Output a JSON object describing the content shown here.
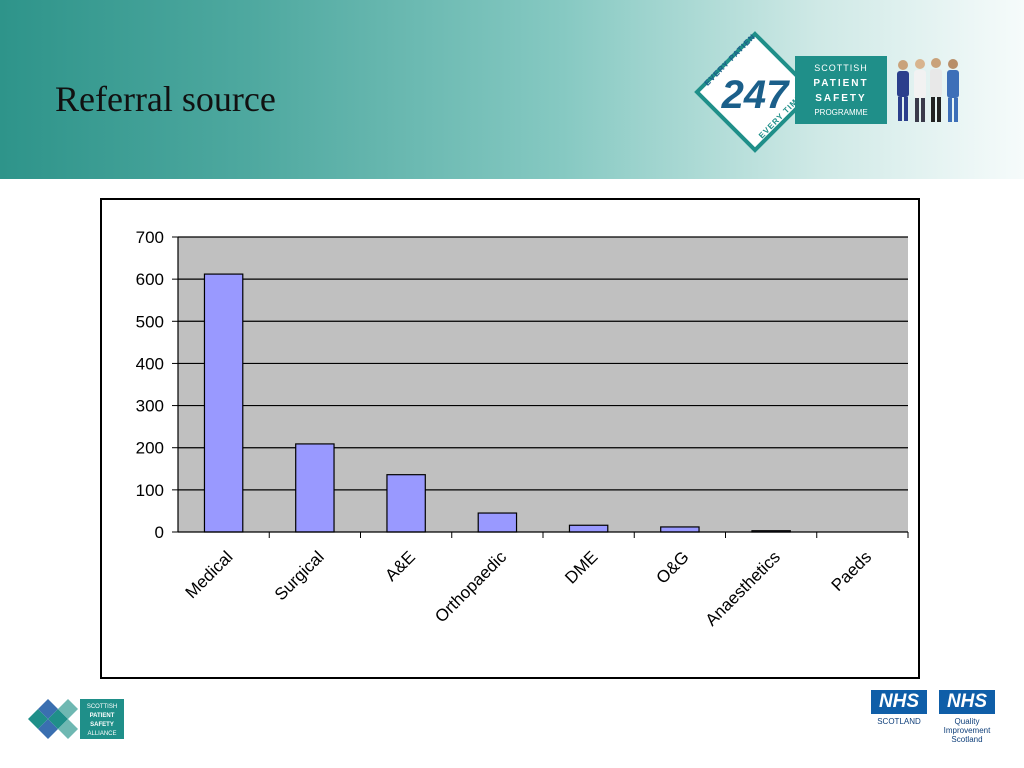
{
  "slide": {
    "title": "Referral source"
  },
  "programme_logo": {
    "ring_top": "EVERY PATIENT",
    "ring_bottom": "EVERY TIME",
    "number": "247",
    "lines": [
      "SCOTTISH",
      "PATIENT",
      "SAFETY",
      "PROGRAMME"
    ]
  },
  "alliance_logo": {
    "lines": [
      "SCOTTISH",
      "PATIENT",
      "SAFETY",
      "ALLIANCE"
    ]
  },
  "nhs_scotland_logo": {
    "mark": "NHS",
    "name": "SCOTLAND"
  },
  "nhs_qis_logo": {
    "mark": "NHS",
    "lines": [
      "Quality",
      "Improvement",
      "Scotland"
    ]
  },
  "colors": {
    "bar_fill": "#9999ff",
    "plot_background": "#c0c0c0",
    "brand_teal": "#1f8f89",
    "nhs_blue": "#0f5ea8"
  },
  "chart_data": {
    "type": "bar",
    "categories": [
      "Medical",
      "Surgical",
      "A&E",
      "Orthopaedic",
      "DME",
      "O&G",
      "Anaesthetics",
      "Paeds"
    ],
    "values": [
      612,
      209,
      136,
      45,
      16,
      12,
      3,
      0
    ],
    "title": "",
    "xlabel": "",
    "ylabel": "",
    "ylim": [
      0,
      700
    ],
    "yticks": [
      0,
      100,
      200,
      300,
      400,
      500,
      600,
      700
    ],
    "grid": true,
    "legend": "none"
  }
}
